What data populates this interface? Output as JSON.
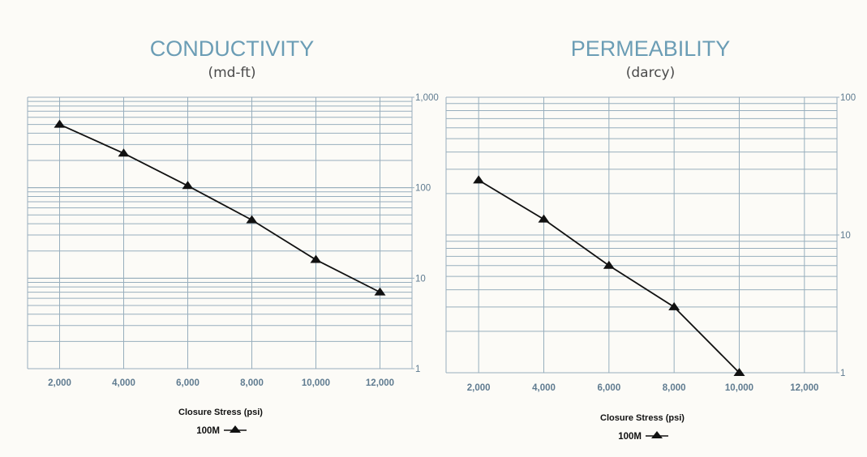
{
  "colors": {
    "title": "#6b9db5",
    "grid": "#97aebd",
    "line": "#111111",
    "background": "#fcfbf7"
  },
  "chart_data": [
    {
      "type": "line",
      "title": "CONDUCTIVITY",
      "subtitle": "(md-ft)",
      "xlabel": "Closure Stress (psi)",
      "ylabel": "",
      "yscale": "log",
      "ylim": [
        1,
        1000
      ],
      "xlim": [
        1000,
        13000
      ],
      "xticks": [
        2000,
        4000,
        6000,
        8000,
        10000,
        12000
      ],
      "xtick_labels": [
        "2,000",
        "4,000",
        "6,000",
        "8,000",
        "10,000",
        "12,000"
      ],
      "yticks": [
        1,
        10,
        100,
        1000
      ],
      "ytick_labels": [
        "1",
        "10",
        "100",
        "1,000"
      ],
      "y_axis_side": "right",
      "grid": true,
      "legend_placement": "bottom-center",
      "series": [
        {
          "name": "100M",
          "marker": "triangle",
          "x": [
            2000,
            4000,
            6000,
            8000,
            10000,
            12000
          ],
          "values": [
            500,
            240,
            105,
            44,
            16,
            7
          ]
        }
      ]
    },
    {
      "type": "line",
      "title": "PERMEABILITY",
      "subtitle": "(darcy)",
      "xlabel": "Closure Stress (psi)",
      "ylabel": "",
      "yscale": "log",
      "ylim": [
        1,
        100
      ],
      "xlim": [
        1000,
        13000
      ],
      "xticks": [
        2000,
        4000,
        6000,
        8000,
        10000,
        12000
      ],
      "xtick_labels": [
        "2,000",
        "4,000",
        "6,000",
        "8,000",
        "10,000",
        "12,000"
      ],
      "yticks": [
        1,
        10,
        100
      ],
      "ytick_labels": [
        "1",
        "10",
        "100"
      ],
      "y_axis_side": "right",
      "grid": true,
      "legend_placement": "bottom-center",
      "series": [
        {
          "name": "100M",
          "marker": "triangle",
          "x": [
            2000,
            4000,
            6000,
            8000,
            10000
          ],
          "values": [
            25,
            13,
            6,
            3,
            1
          ]
        }
      ]
    }
  ]
}
